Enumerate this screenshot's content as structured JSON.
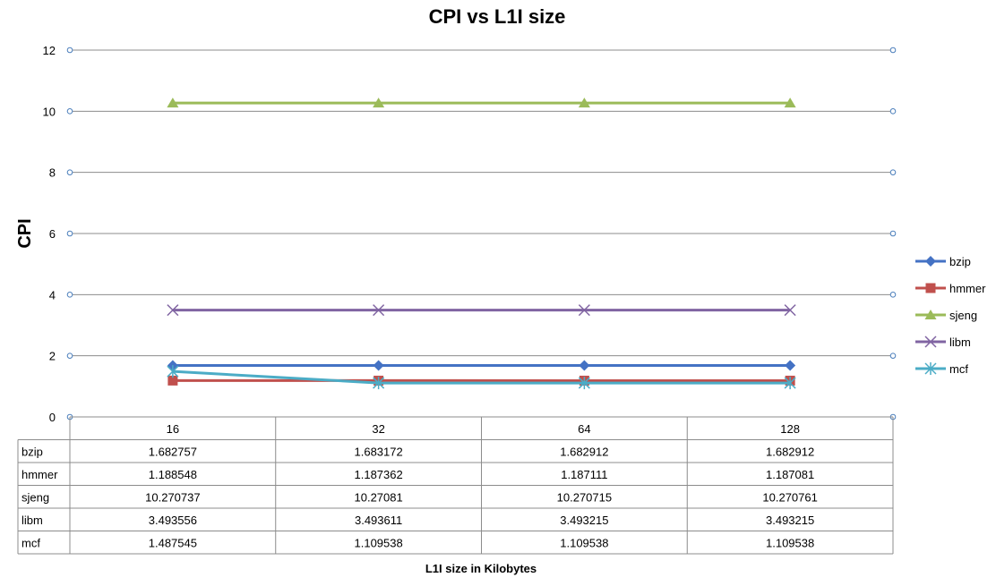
{
  "chart_data": {
    "type": "line",
    "title": "CPI vs L1I size",
    "xlabel": "L1I size in Kilobytes",
    "ylabel": "CPI",
    "categories": [
      "16",
      "32",
      "64",
      "128"
    ],
    "ylim": [
      0,
      12
    ],
    "yticks": [
      "0",
      "2",
      "4",
      "6",
      "8",
      "10",
      "12"
    ],
    "grid": true,
    "legend_position": "right",
    "series": [
      {
        "name": "bzip",
        "color": "#4472c4",
        "marker": "diamond",
        "values": [
          1.682757,
          1.683172,
          1.682912,
          1.682912
        ],
        "labels": [
          "1.682757",
          "1.683172",
          "1.682912",
          "1.682912"
        ]
      },
      {
        "name": "hmmer",
        "color": "#c0504d",
        "marker": "square",
        "values": [
          1.188548,
          1.187362,
          1.187111,
          1.187081
        ],
        "labels": [
          "1.188548",
          "1.187362",
          "1.187111",
          "1.187081"
        ]
      },
      {
        "name": "sjeng",
        "color": "#9bbb59",
        "marker": "triangle",
        "values": [
          10.270737,
          10.27081,
          10.270715,
          10.270761
        ],
        "labels": [
          "10.270737",
          "10.27081",
          "10.270715",
          "10.270761"
        ]
      },
      {
        "name": "libm",
        "color": "#8064a2",
        "marker": "x",
        "values": [
          3.493556,
          3.493611,
          3.493215,
          3.493215
        ],
        "labels": [
          "3.493556",
          "3.493611",
          "3.493215",
          "3.493215"
        ]
      },
      {
        "name": "mcf",
        "color": "#4bacc6",
        "marker": "star",
        "values": [
          1.487545,
          1.109538,
          1.109538,
          1.109538
        ],
        "labels": [
          "1.487545",
          "1.109538",
          "1.109538",
          "1.109538"
        ]
      }
    ]
  }
}
